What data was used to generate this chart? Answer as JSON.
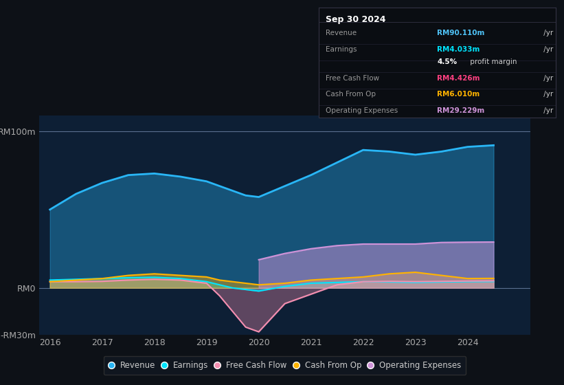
{
  "bg_color": "#0d1117",
  "chart_bg": "#0d1f35",
  "title": "Sep 30 2024",
  "info_box_rows": [
    {
      "label": "Revenue",
      "value": "RM90.110m",
      "value_color": "#4fc3f7"
    },
    {
      "label": "Earnings",
      "value": "RM4.033m",
      "value_color": "#00e5ff"
    },
    {
      "label": "",
      "value": "4.5% profit margin",
      "value_color": "#dddddd"
    },
    {
      "label": "Free Cash Flow",
      "value": "RM4.426m",
      "value_color": "#ff4081"
    },
    {
      "label": "Cash From Op",
      "value": "RM6.010m",
      "value_color": "#ffb300"
    },
    {
      "label": "Operating Expenses",
      "value": "RM29.229m",
      "value_color": "#ce93d8"
    }
  ],
  "years": [
    2016,
    2016.5,
    2017,
    2017.5,
    2018,
    2018.5,
    2019,
    2019.25,
    2019.5,
    2019.75,
    2020,
    2020.5,
    2021,
    2021.5,
    2022,
    2022.5,
    2023,
    2023.5,
    2024,
    2024.5
  ],
  "revenue": [
    50,
    60,
    67,
    72,
    73,
    71,
    68,
    65,
    62,
    59,
    58,
    65,
    72,
    80,
    88,
    87,
    85,
    87,
    90,
    91
  ],
  "earnings": [
    5,
    5.5,
    6,
    6.5,
    6.8,
    6,
    4,
    2,
    0,
    -1,
    -2,
    1,
    3,
    3.5,
    4,
    3.8,
    3.5,
    3.8,
    4,
    4.1
  ],
  "free_cash": [
    4,
    4,
    4.2,
    5,
    5.5,
    5,
    3,
    -5,
    -15,
    -25,
    -28,
    -10,
    -4,
    2,
    4,
    4.2,
    4,
    4.2,
    4.4,
    4.5
  ],
  "cash_from_op": [
    4,
    5,
    6,
    8,
    9,
    8,
    7,
    5,
    4,
    3,
    2,
    3,
    5,
    6,
    7,
    9,
    10,
    8,
    6,
    6.1
  ],
  "op_expenses": [
    0,
    0,
    0,
    0,
    0,
    0,
    0,
    0,
    0,
    0,
    18,
    22,
    25,
    27,
    28,
    28,
    28,
    29,
    29.2,
    29.3
  ],
  "ylim_min": -30,
  "ylim_max": 110,
  "xticks": [
    2016,
    2017,
    2018,
    2019,
    2020,
    2021,
    2022,
    2023,
    2024
  ],
  "colors": {
    "revenue": "#29b6f6",
    "earnings": "#00e5ff",
    "free_cash": "#f48fb1",
    "cash_from_op": "#ffb300",
    "op_expenses": "#ce93d8"
  },
  "legend": [
    {
      "label": "Revenue",
      "color": "#29b6f6"
    },
    {
      "label": "Earnings",
      "color": "#00e5ff"
    },
    {
      "label": "Free Cash Flow",
      "color": "#f48fb1"
    },
    {
      "label": "Cash From Op",
      "color": "#ffb300"
    },
    {
      "label": "Operating Expenses",
      "color": "#ce93d8"
    }
  ]
}
